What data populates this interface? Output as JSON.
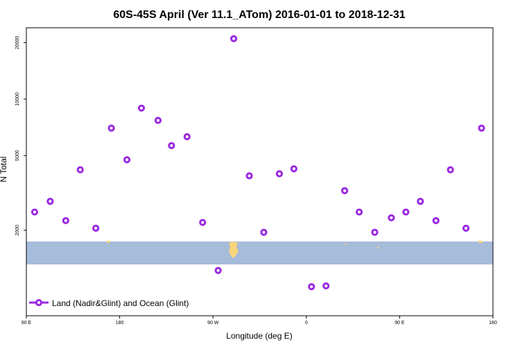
{
  "chart_data": {
    "type": "scatter",
    "title": "60S-45S April (Ver 11.1_ATom)   2016-01-01 to 2018-12-31",
    "xlabel": "Longitude (deg E)",
    "ylabel": "N Total",
    "xlim": [
      90,
      540
    ],
    "ylim_log": [
      700,
      24000
    ],
    "y_scale": "log",
    "x_ticks": [
      {
        "value": 90,
        "label": "90 E"
      },
      {
        "value": 180,
        "label": "180"
      },
      {
        "value": 270,
        "label": "90 W"
      },
      {
        "value": 360,
        "label": "0"
      },
      {
        "value": 450,
        "label": "90 E"
      },
      {
        "value": 540,
        "label": "180"
      }
    ],
    "y_ticks": [
      {
        "value": 2000,
        "label": "2000"
      },
      {
        "value": 5000,
        "label": "5000"
      },
      {
        "value": 10000,
        "label": "10000"
      },
      {
        "value": 20000,
        "label": "20000"
      }
    ],
    "band": {
      "from": 57,
      "to": 45,
      "color": "#a7bbdb"
    },
    "land_color": "#f7d57a",
    "series": [
      {
        "name": "Land (Nadir&Glint) and Ocean (Glint)",
        "color": "#9a28e0",
        "points": [
          {
            "x": 98,
            "y": 2500
          },
          {
            "x": 113,
            "y": 2850
          },
          {
            "x": 128,
            "y": 2250
          },
          {
            "x": 142,
            "y": 4200
          },
          {
            "x": 157,
            "y": 2050
          },
          {
            "x": 172,
            "y": 7000
          },
          {
            "x": 187,
            "y": 4750
          },
          {
            "x": 201,
            "y": 8950
          },
          {
            "x": 217,
            "y": 7700
          },
          {
            "x": 230,
            "y": 5650
          },
          {
            "x": 245,
            "y": 6300
          },
          {
            "x": 260,
            "y": 2200
          },
          {
            "x": 275,
            "y": 1220
          },
          {
            "x": 290,
            "y": 21000
          },
          {
            "x": 305,
            "y": 3900
          },
          {
            "x": 319,
            "y": 1950
          },
          {
            "x": 334,
            "y": 4000
          },
          {
            "x": 348,
            "y": 4250
          },
          {
            "x": 365,
            "y": 1000
          },
          {
            "x": 379,
            "y": 1010
          },
          {
            "x": 397,
            "y": 3250
          },
          {
            "x": 411,
            "y": 2500
          },
          {
            "x": 426,
            "y": 1950
          },
          {
            "x": 442,
            "y": 2330
          },
          {
            "x": 456,
            "y": 2500
          },
          {
            "x": 470,
            "y": 2850
          },
          {
            "x": 485,
            "y": 2250
          },
          {
            "x": 499,
            "y": 4200
          },
          {
            "x": 514,
            "y": 2050
          },
          {
            "x": 529,
            "y": 7000
          }
        ]
      }
    ],
    "legend_position": "bottom-left"
  }
}
